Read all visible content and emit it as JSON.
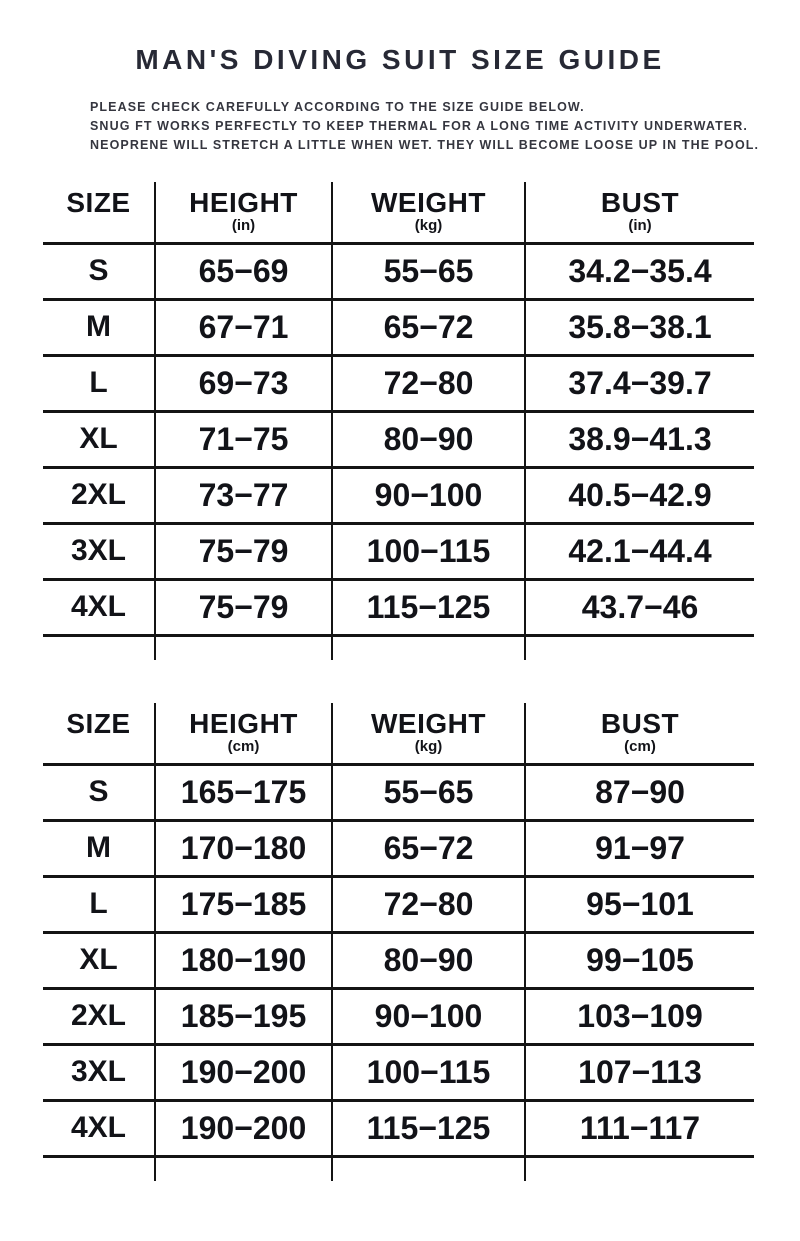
{
  "colors": {
    "background": "#ffffff",
    "title_text": "#272935",
    "note_text": "#35363f",
    "table_text": "#121318",
    "table_lines": "#141414"
  },
  "header": {
    "title": "MAN'S DIVING SUIT SIZE GUIDE",
    "notes": [
      "PLEASE CHECK CAREFULLY ACCORDING TO THE SIZE GUIDE BELOW.",
      "SNUG FT WORKS PERFECTLY TO KEEP THERMAL FOR A LONG TIME ACTIVITY UNDERWATER.",
      "NEOPRENE WILL STRETCH A LITTLE WHEN WET. THEY WILL BECOME LOOSE UP IN THE POOL."
    ]
  },
  "chart_data": [
    {
      "type": "table",
      "title": "MAN'S DIVING SUIT SIZE GUIDE",
      "columns": [
        {
          "label": "SIZE",
          "unit": ""
        },
        {
          "label": "HEIGHT",
          "unit": "(in)"
        },
        {
          "label": "WEIGHT",
          "unit": "(kg)"
        },
        {
          "label": "BUST",
          "unit": "(in)"
        }
      ],
      "rows": [
        [
          "S",
          "65−69",
          "55−65",
          "34.2−35.4"
        ],
        [
          "M",
          "67−71",
          "65−72",
          "35.8−38.1"
        ],
        [
          "L",
          "69−73",
          "72−80",
          "37.4−39.7"
        ],
        [
          "XL",
          "71−75",
          "80−90",
          "38.9−41.3"
        ],
        [
          "2XL",
          "73−77",
          "90−100",
          "40.5−42.9"
        ],
        [
          "3XL",
          "75−79",
          "100−115",
          "42.1−44.4"
        ],
        [
          "4XL",
          "75−79",
          "115−125",
          "43.7−46"
        ]
      ]
    },
    {
      "type": "table",
      "title": "MAN'S DIVING SUIT SIZE GUIDE",
      "columns": [
        {
          "label": "SIZE",
          "unit": ""
        },
        {
          "label": "HEIGHT",
          "unit": "(cm)"
        },
        {
          "label": "WEIGHT",
          "unit": "(kg)"
        },
        {
          "label": "BUST",
          "unit": "(cm)"
        }
      ],
      "rows": [
        [
          "S",
          "165−175",
          "55−65",
          "87−90"
        ],
        [
          "M",
          "170−180",
          "65−72",
          "91−97"
        ],
        [
          "L",
          "175−185",
          "72−80",
          "95−101"
        ],
        [
          "XL",
          "180−190",
          "80−90",
          "99−105"
        ],
        [
          "2XL",
          "185−195",
          "90−100",
          "103−109"
        ],
        [
          "3XL",
          "190−200",
          "100−115",
          "107−113"
        ],
        [
          "4XL",
          "190−200",
          "115−125",
          "111−117"
        ]
      ]
    }
  ]
}
